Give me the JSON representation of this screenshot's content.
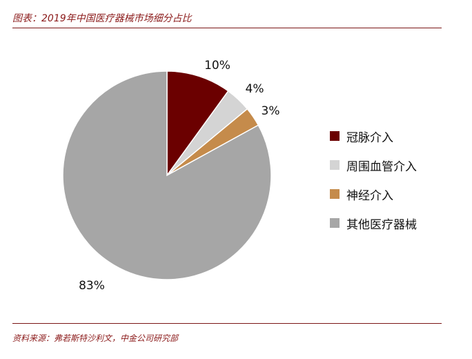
{
  "caption": "图表：2019年中国医疗器械市场细分占比",
  "source": "资料来源：弗若斯特沙利文，中金公司研究部",
  "chart_data": {
    "type": "pie",
    "title": "",
    "series": [
      {
        "name": "冠脉介入",
        "value": 10,
        "label": "10%",
        "color": "#6b0000"
      },
      {
        "name": "周围血管介入",
        "value": 4,
        "label": "4%",
        "color": "#d4d4d4"
      },
      {
        "name": "神经介入",
        "value": 3,
        "label": "3%",
        "color": "#c58b4b"
      },
      {
        "name": "其他医疗器械",
        "value": 83,
        "label": "83%",
        "color": "#a6a6a6"
      }
    ],
    "legend_position": "right"
  }
}
